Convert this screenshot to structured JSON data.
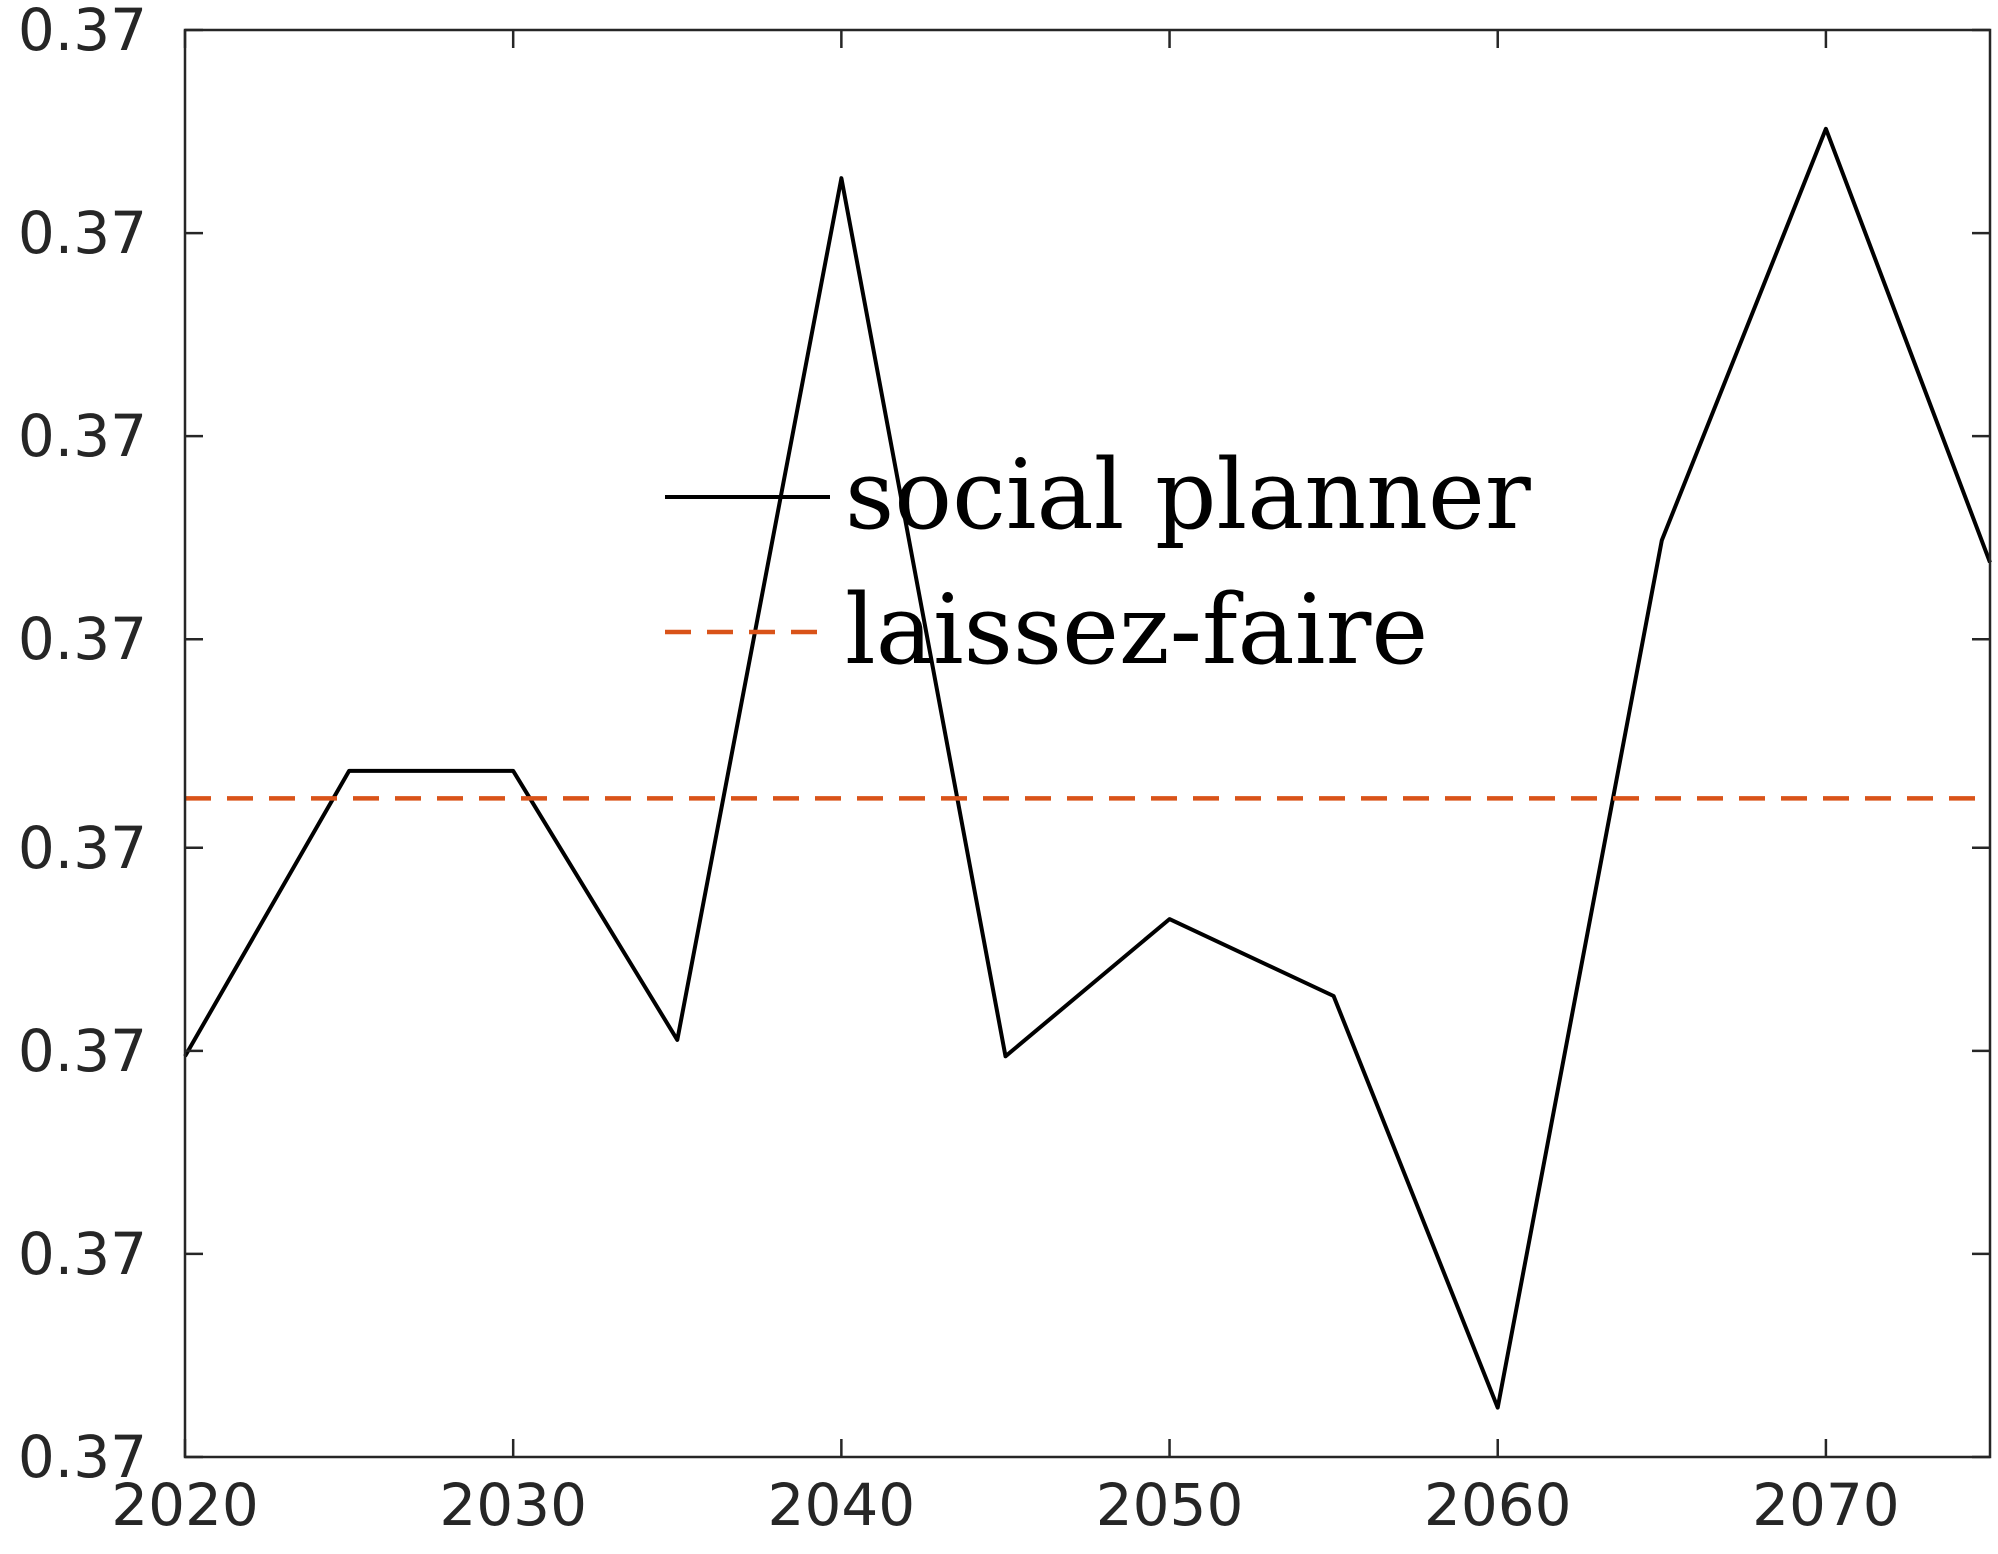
{
  "chart_data": {
    "type": "line",
    "x": [
      2020,
      2025,
      2030,
      2035,
      2040,
      2045,
      2050,
      2055,
      2060,
      2065,
      2070,
      2075
    ],
    "series": [
      {
        "name": "social planner",
        "color": "#000000",
        "style": "solid",
        "values": [
          0.36983,
          0.37035,
          0.37035,
          0.36986,
          0.37143,
          0.36983,
          0.37008,
          0.36994,
          0.36919,
          0.37077,
          0.37152,
          0.37073
        ]
      },
      {
        "name": "laissez-faire",
        "color": "#D95319",
        "style": "dashed",
        "values": [
          0.3703,
          0.3703,
          0.3703,
          0.3703,
          0.3703,
          0.3703,
          0.3703,
          0.3703,
          0.3703,
          0.3703,
          0.3703,
          0.3703
        ]
      }
    ],
    "xlim": [
      2020,
      2075
    ],
    "ylim": [
      0.3691,
      0.3717
    ],
    "xticks": [
      2020,
      2030,
      2040,
      2050,
      2060,
      2070
    ],
    "xtick_labels": [
      "2020",
      "2030",
      "2040",
      "2050",
      "2060",
      "2070"
    ],
    "yticks": [
      0.3691,
      0.36947,
      0.36984,
      0.37021,
      0.37059,
      0.37096,
      0.37133,
      0.3717
    ],
    "ytick_labels": [
      "0.37",
      "0.37",
      "0.37",
      "0.37",
      "0.37",
      "0.37",
      "0.37",
      "0.37"
    ],
    "title": "",
    "xlabel": "",
    "ylabel": "",
    "grid": false,
    "legend_position": "center-top"
  }
}
